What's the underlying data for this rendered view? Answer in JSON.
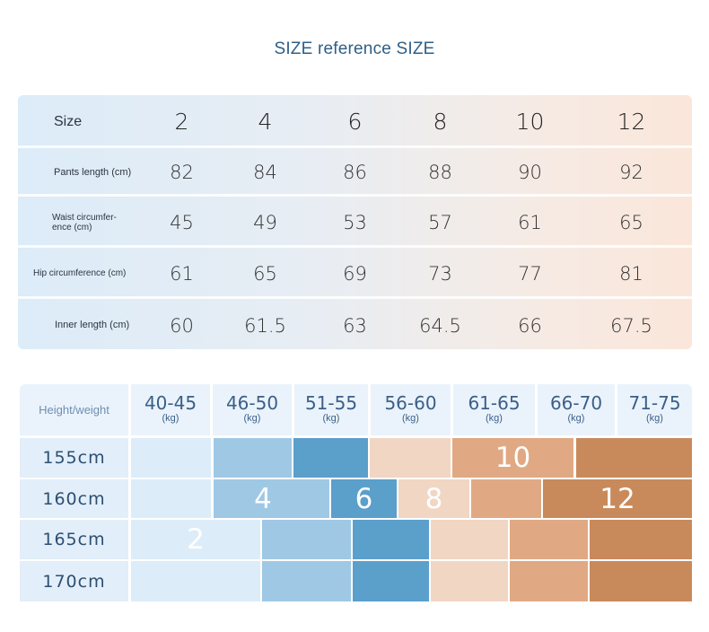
{
  "title": "SIZE reference SIZE",
  "size_table": {
    "header_label": "Size",
    "sizes": [
      "2",
      "4",
      "6",
      "8",
      "10",
      "12"
    ],
    "rows": [
      {
        "label": "Pants length (cm)",
        "values": [
          "82",
          "84",
          "86",
          "88",
          "90",
          "92"
        ]
      },
      {
        "label": "Waist circumfer-\nence (cm)",
        "values": [
          "45",
          "49",
          "53",
          "57",
          "61",
          "65"
        ]
      },
      {
        "label": "Hip circumference (cm)",
        "values": [
          "61",
          "65",
          "69",
          "73",
          "77",
          "81"
        ]
      },
      {
        "label": "Inner length (cm)",
        "values": [
          "60",
          "61.5",
          "63",
          "64.5",
          "66",
          "67.5"
        ]
      }
    ]
  },
  "fit_table": {
    "corner_label": "Height/weight",
    "weight_ranges": [
      "40-45",
      "46-50",
      "51-55",
      "56-60",
      "61-65",
      "66-70",
      "71-75"
    ],
    "unit": "(kg)",
    "heights": [
      "155cm",
      "160cm",
      "165cm",
      "170cm"
    ],
    "size_labels": {
      "r155": "10",
      "r160a": "4",
      "r160b": "6",
      "r160c": "8",
      "r160d": "12",
      "r165": "2"
    },
    "colors": {
      "size2": "#d9ecf8",
      "size4": "#9fc8e4",
      "size6": "#5b9fcb",
      "size8": "#f1d6c4",
      "size10": "#e0a983",
      "size12": "#c98a5b"
    }
  }
}
